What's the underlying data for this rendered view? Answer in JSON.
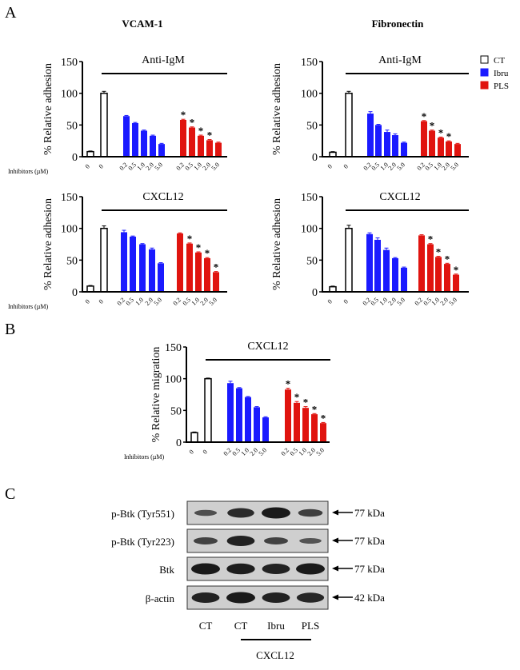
{
  "panel_labels": {
    "a": "A",
    "b": "B",
    "c": "C"
  },
  "column_titles": {
    "left": "VCAM-1",
    "right": "Fibronectin"
  },
  "colors": {
    "CT": "#ffffff",
    "Ibru": "#1a1aff",
    "PLS": "#e0140f"
  },
  "legend": [
    {
      "label": "CT",
      "color": "#ffffff"
    },
    {
      "label": "Ibru",
      "color": "#1a1aff"
    },
    {
      "label": "PLS",
      "color": "#e0140f"
    }
  ],
  "x_axis_prefix": "Inhibitors (µM)",
  "chart_data": [
    {
      "type": "bar",
      "panel": "A",
      "column": "VCAM-1",
      "title": "Anti-IgM",
      "ylabel": "% Relative adhesion",
      "ylim": [
        0,
        150
      ],
      "yticks": [
        0,
        50,
        100,
        150
      ],
      "show_inhibitor_label": true,
      "categories": [
        "0",
        "0",
        "0.2",
        "0.5",
        "1.0",
        "2.0",
        "5.0",
        "0.2",
        "0.5",
        "1.0",
        "2.0",
        "5.0"
      ],
      "groups": [
        "CT",
        "CT",
        "Ibru",
        "Ibru",
        "Ibru",
        "Ibru",
        "Ibru",
        "PLS",
        "PLS",
        "PLS",
        "PLS",
        "PLS"
      ],
      "values": [
        8,
        100,
        64,
        53,
        41,
        33,
        20,
        58,
        46,
        33,
        26,
        22
      ],
      "errors": [
        1,
        3,
        1,
        1,
        1,
        1,
        1,
        1,
        1,
        1,
        1,
        1
      ],
      "significant": [
        false,
        false,
        false,
        false,
        false,
        false,
        false,
        true,
        true,
        true,
        true,
        false
      ]
    },
    {
      "type": "bar",
      "panel": "A",
      "column": "Fibronectin",
      "title": "Anti-IgM",
      "ylabel": "% Relative adhesion",
      "ylim": [
        0,
        150
      ],
      "yticks": [
        0,
        50,
        100,
        150
      ],
      "show_inhibitor_label": false,
      "categories": [
        "0",
        "0",
        "0.2",
        "0.5",
        "1.0",
        "2.0",
        "5.0",
        "0.2",
        "0.5",
        "1.0",
        "2.0",
        "5.0"
      ],
      "groups": [
        "CT",
        "CT",
        "Ibru",
        "Ibru",
        "Ibru",
        "Ibru",
        "Ibru",
        "PLS",
        "PLS",
        "PLS",
        "PLS",
        "PLS"
      ],
      "values": [
        7,
        100,
        68,
        50,
        39,
        34,
        22,
        56,
        41,
        30,
        24,
        20
      ],
      "errors": [
        1,
        3,
        3,
        1,
        3,
        2,
        1,
        1,
        1,
        1,
        1,
        1
      ],
      "significant": [
        false,
        false,
        false,
        false,
        false,
        false,
        false,
        true,
        true,
        true,
        true,
        false
      ]
    },
    {
      "type": "bar",
      "panel": "A",
      "column": "VCAM-1",
      "title": "CXCL12",
      "ylabel": "% Relative adhesion",
      "ylim": [
        0,
        150
      ],
      "yticks": [
        0,
        50,
        100,
        150
      ],
      "show_inhibitor_label": true,
      "categories": [
        "0",
        "0",
        "0.2",
        "0.5",
        "1.0",
        "2.0",
        "5.0",
        "0.2",
        "0.5",
        "1.0",
        "2.0",
        "5.0"
      ],
      "groups": [
        "CT",
        "CT",
        "Ibru",
        "Ibru",
        "Ibru",
        "Ibru",
        "Ibru",
        "PLS",
        "PLS",
        "PLS",
        "PLS",
        "PLS"
      ],
      "values": [
        9,
        100,
        94,
        87,
        75,
        67,
        45,
        92,
        76,
        62,
        53,
        31
      ],
      "errors": [
        1,
        4,
        3,
        1,
        1,
        2,
        1,
        1,
        1,
        1,
        1,
        1
      ],
      "significant": [
        false,
        false,
        false,
        false,
        false,
        false,
        false,
        false,
        true,
        true,
        true,
        true
      ]
    },
    {
      "type": "bar",
      "panel": "A",
      "column": "Fibronectin",
      "title": "CXCL12",
      "ylabel": "% Relative adhesion",
      "ylim": [
        0,
        150
      ],
      "yticks": [
        0,
        50,
        100,
        150
      ],
      "show_inhibitor_label": true,
      "categories": [
        "0",
        "0",
        "0.2",
        "0.5",
        "1.0",
        "2.0",
        "5.0",
        "0.2",
        "0.5",
        "1.0",
        "2.0",
        "5.0"
      ],
      "groups": [
        "CT",
        "CT",
        "Ibru",
        "Ibru",
        "Ibru",
        "Ibru",
        "Ibru",
        "PLS",
        "PLS",
        "PLS",
        "PLS",
        "PLS"
      ],
      "values": [
        8,
        100,
        91,
        82,
        66,
        53,
        38,
        89,
        75,
        55,
        44,
        27
      ],
      "errors": [
        1,
        5,
        2,
        3,
        3,
        1,
        1,
        1,
        1,
        1,
        1,
        1
      ],
      "significant": [
        false,
        false,
        false,
        false,
        false,
        false,
        false,
        false,
        true,
        true,
        true,
        true
      ]
    },
    {
      "type": "bar",
      "panel": "B",
      "title": "CXCL12",
      "ylabel": "% Relative migration",
      "ylim": [
        0,
        150
      ],
      "yticks": [
        0,
        50,
        100,
        150
      ],
      "show_inhibitor_label": true,
      "categories": [
        "0",
        "0",
        "0.2",
        "0.5",
        "1.0",
        "2.0",
        "5.0",
        "0.2",
        "0.5",
        "1.0",
        "2.0",
        "5.0"
      ],
      "groups": [
        "CT",
        "CT",
        "Ibru",
        "Ibru",
        "Ibru",
        "Ibru",
        "Ibru",
        "PLS",
        "PLS",
        "PLS",
        "PLS",
        "PLS"
      ],
      "values": [
        15,
        100,
        93,
        85,
        71,
        55,
        39,
        83,
        62,
        54,
        44,
        30
      ],
      "errors": [
        1,
        1,
        3,
        1,
        1,
        1,
        1,
        2,
        2,
        2,
        1,
        1
      ],
      "significant": [
        false,
        false,
        false,
        false,
        false,
        false,
        false,
        true,
        true,
        true,
        true,
        true
      ]
    }
  ],
  "western_blot": {
    "rows": [
      {
        "label": "p-Btk (Tyr551)",
        "size": "77 kDa",
        "intensity": [
          0.35,
          0.8,
          1.0,
          0.55
        ]
      },
      {
        "label": "p-Btk (Tyr223)",
        "size": "77 kDa",
        "intensity": [
          0.5,
          0.9,
          0.5,
          0.3
        ]
      },
      {
        "label": "Btk",
        "size": "77 kDa",
        "intensity": [
          1.0,
          0.95,
          0.9,
          1.0
        ]
      },
      {
        "label": "β-actin",
        "size": "42 kDa",
        "intensity": [
          0.9,
          1.0,
          0.9,
          0.85
        ]
      }
    ],
    "lanes": [
      "CT",
      "CT",
      "Ibru",
      "PLS"
    ],
    "treatment_label": "CXCL12"
  }
}
